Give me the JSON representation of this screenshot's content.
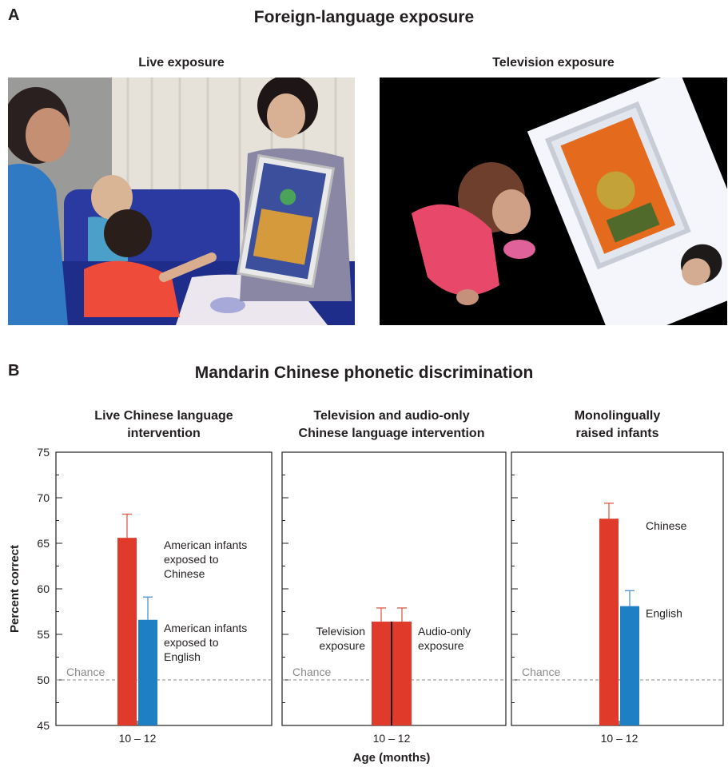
{
  "panel_a": {
    "letter": "A",
    "title": "Foreign-language exposure",
    "photos": [
      {
        "title": "Live exposure"
      },
      {
        "title": "Television exposure"
      }
    ]
  },
  "panel_b": {
    "letter": "B",
    "title": "Mandarin Chinese phonetic discrimination"
  },
  "colors": {
    "red": "#e03a2a",
    "blue": "#1f7fc4",
    "error_red": "#e05a4a",
    "error_blue": "#4a90cc"
  },
  "chart_data": [
    {
      "type": "bar",
      "title_lines": [
        "Live Chinese language",
        "intervention"
      ],
      "ylabel": "Percent correct",
      "xlabel": "",
      "ylim": [
        45,
        75
      ],
      "yticks": [
        45,
        50,
        55,
        60,
        65,
        70,
        75
      ],
      "categories": [
        "10 – 12"
      ],
      "chance": {
        "value": 50,
        "label": "Chance"
      },
      "series": [
        {
          "label_lines": [
            "American infants",
            "exposed to",
            "Chinese"
          ],
          "values": [
            65.6
          ],
          "error": [
            2.6
          ],
          "color": "#e03a2a"
        },
        {
          "label_lines": [
            "American infants",
            "exposed to",
            "English"
          ],
          "values": [
            56.6
          ],
          "error": [
            2.5
          ],
          "color": "#1f7fc4"
        }
      ]
    },
    {
      "type": "bar",
      "title_lines": [
        "Television and audio-only",
        "Chinese language intervention"
      ],
      "ylim": [
        45,
        75
      ],
      "categories": [
        "10 – 12"
      ],
      "chance": {
        "value": 50,
        "label": "Chance"
      },
      "series": [
        {
          "label_lines": [
            "Television",
            "exposure"
          ],
          "values": [
            56.4
          ],
          "error": [
            1.5
          ],
          "color": "#e03a2a"
        },
        {
          "label_lines": [
            "Audio-only",
            "exposure"
          ],
          "values": [
            56.4
          ],
          "error": [
            1.5
          ],
          "color": "#e03a2a"
        }
      ]
    },
    {
      "type": "bar",
      "title_lines": [
        "Monolingually",
        "raised infants"
      ],
      "ylim": [
        45,
        75
      ],
      "categories": [
        "10 – 12"
      ],
      "chance": {
        "value": 50,
        "label": "Chance"
      },
      "series": [
        {
          "label_lines": [
            "Chinese"
          ],
          "values": [
            67.7
          ],
          "error": [
            1.7
          ],
          "color": "#e03a2a"
        },
        {
          "label_lines": [
            "English"
          ],
          "values": [
            58.1
          ],
          "error": [
            1.7
          ],
          "color": "#1f7fc4"
        }
      ]
    }
  ],
  "shared_xlabel": "Age (months)"
}
